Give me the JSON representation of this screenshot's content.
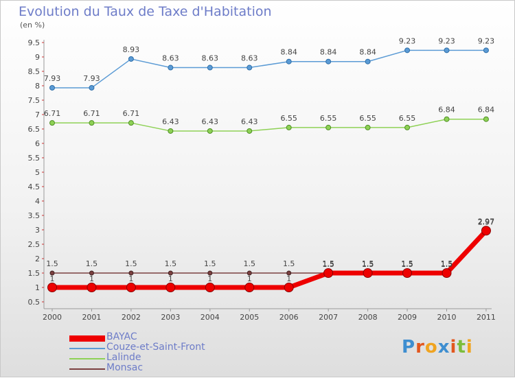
{
  "title": "Evolution du Taux de Taxe d'Habitation",
  "unit": "(en %)",
  "brand": "Proxiti",
  "chart_data": {
    "type": "line",
    "x": [
      "2000",
      "2001",
      "2002",
      "2003",
      "2004",
      "2005",
      "2006",
      "2007",
      "2008",
      "2009",
      "2010",
      "2011"
    ],
    "ylim": [
      0.5,
      9.5
    ],
    "yticks": [
      "0.5",
      "1",
      "1.5",
      "2",
      "2.5",
      "3",
      "3.5",
      "4",
      "4.5",
      "5",
      "5.5",
      "6",
      "6.5",
      "7",
      "7.5",
      "8",
      "8.5",
      "9",
      "9.5"
    ],
    "grid": false,
    "legend_position": "bottom-left",
    "series": [
      {
        "name": "BAYAC",
        "color": "#ee0000",
        "values": [
          1,
          1,
          1,
          1,
          1,
          1,
          1,
          1.5,
          1.5,
          1.5,
          1.5,
          2.97
        ],
        "labels": [
          "1",
          "1",
          "1",
          "1",
          "1",
          "1",
          "1",
          "1.5",
          "1.5",
          "1.5",
          "1.5",
          "2.97"
        ]
      },
      {
        "name": "Couze-et-Saint-Front",
        "color": "#5b9bd5",
        "values": [
          7.93,
          7.93,
          8.93,
          8.63,
          8.63,
          8.63,
          8.84,
          8.84,
          8.84,
          9.23,
          9.23,
          9.23
        ],
        "labels": [
          "7.93",
          "7.93",
          "8.93",
          "8.63",
          "8.63",
          "8.63",
          "8.84",
          "8.84",
          "8.84",
          "9.23",
          "9.23",
          "9.23"
        ]
      },
      {
        "name": "Lalinde",
        "color": "#8ed155",
        "values": [
          6.71,
          6.71,
          6.71,
          6.43,
          6.43,
          6.43,
          6.55,
          6.55,
          6.55,
          6.55,
          6.84,
          6.84
        ],
        "labels": [
          "6.71",
          "6.71",
          "6.71",
          "6.43",
          "6.43",
          "6.43",
          "6.55",
          "6.55",
          "6.55",
          "6.55",
          "6.84",
          "6.84"
        ]
      },
      {
        "name": "Monsac",
        "color": "#7b3f3f",
        "values": [
          1.5,
          1.5,
          1.5,
          1.5,
          1.5,
          1.5,
          1.5,
          1.5,
          1.5,
          1.5,
          1.5,
          2.97
        ],
        "labels": [
          "1.5",
          "1.5",
          "1.5",
          "1.5",
          "1.5",
          "1.5",
          "1.5",
          "1.5",
          "1.5",
          "1.5",
          "1.5",
          "2.97"
        ]
      }
    ]
  },
  "legend": [
    {
      "label": "BAYAC",
      "color": "#ee0000"
    },
    {
      "label": "Couze-et-Saint-Front",
      "color": "#5b9bd5"
    },
    {
      "label": "Lalinde",
      "color": "#8ed155"
    },
    {
      "label": "Monsac",
      "color": "#7b3f3f"
    }
  ],
  "logo_colors": [
    "#3e8ed0",
    "#e2571e",
    "#f0a420",
    "#3e8ed0",
    "#e2571e",
    "#7cbd3c",
    "#f0a420"
  ]
}
